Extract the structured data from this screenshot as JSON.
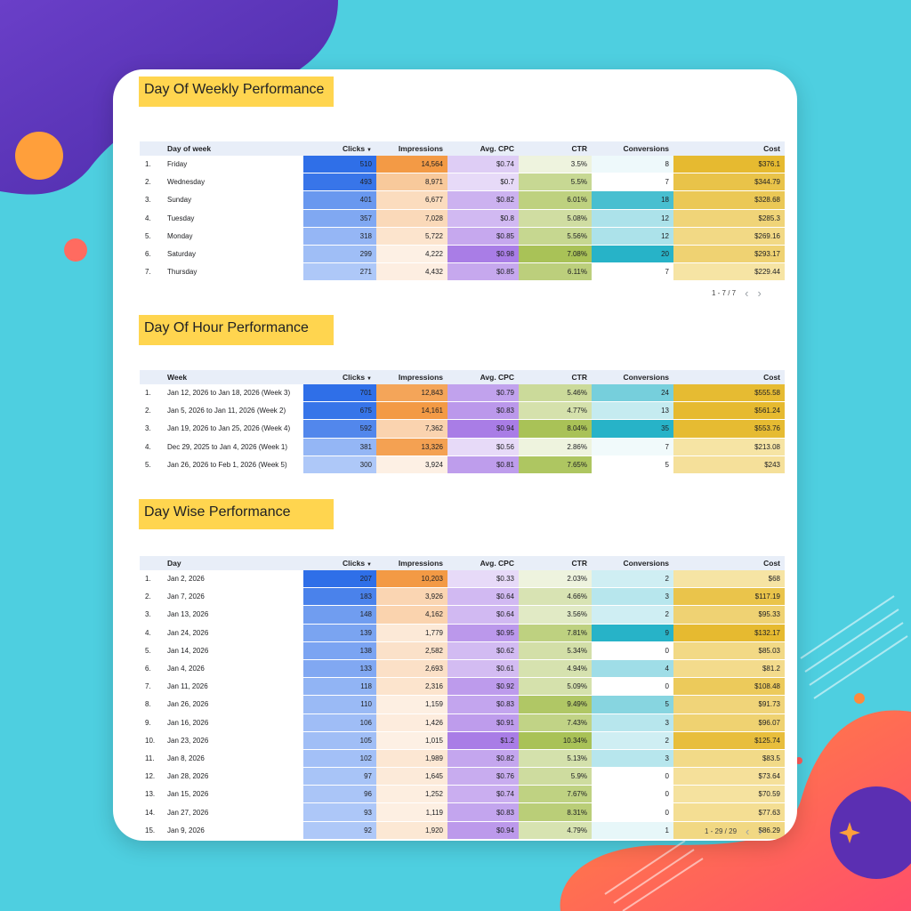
{
  "colors": {
    "background": "#4ecfe0",
    "card": "#ffffff",
    "title_highlight": "#ffd54f",
    "header_row": "#e8eef8",
    "clicks_scale": [
      "#aec8f8",
      "#2f6fe8"
    ],
    "impressions_scale": [
      "#fdf0e4",
      "#f39a45"
    ],
    "cpc_scale": [
      "#e7daf8",
      "#a97de6"
    ],
    "ctr_scale": [
      "#eef3de",
      "#a9c257"
    ],
    "conversions_scale": [
      "#ffffff",
      "#27b3c8"
    ],
    "cost_scale": [
      "#f6e4a4",
      "#e6ba30"
    ]
  },
  "sections": [
    {
      "title": "Day Of Weekly Performance",
      "headers": [
        "",
        "Day of week",
        "Clicks",
        "Impressions",
        "Avg. CPC",
        "CTR",
        "Conversions",
        "Cost"
      ],
      "sort_icon": "sort-desc-icon",
      "rows": [
        {
          "idx": "1.",
          "label": "Friday",
          "clicks": "510",
          "impressions": "14,564",
          "cpc": "$0.74",
          "ctr": "3.5%",
          "conversions": "8",
          "cost": "$376.1"
        },
        {
          "idx": "2.",
          "label": "Wednesday",
          "clicks": "493",
          "impressions": "8,971",
          "cpc": "$0.7",
          "ctr": "5.5%",
          "conversions": "7",
          "cost": "$344.79"
        },
        {
          "idx": "3.",
          "label": "Sunday",
          "clicks": "401",
          "impressions": "6,677",
          "cpc": "$0.82",
          "ctr": "6.01%",
          "conversions": "18",
          "cost": "$328.68"
        },
        {
          "idx": "4.",
          "label": "Tuesday",
          "clicks": "357",
          "impressions": "7,028",
          "cpc": "$0.8",
          "ctr": "5.08%",
          "conversions": "12",
          "cost": "$285.3"
        },
        {
          "idx": "5.",
          "label": "Monday",
          "clicks": "318",
          "impressions": "5,722",
          "cpc": "$0.85",
          "ctr": "5.56%",
          "conversions": "12",
          "cost": "$269.16"
        },
        {
          "idx": "6.",
          "label": "Saturday",
          "clicks": "299",
          "impressions": "4,222",
          "cpc": "$0.98",
          "ctr": "7.08%",
          "conversions": "20",
          "cost": "$293.17"
        },
        {
          "idx": "7.",
          "label": "Thursday",
          "clicks": "271",
          "impressions": "4,432",
          "cpc": "$0.85",
          "ctr": "6.11%",
          "conversions": "7",
          "cost": "$229.44"
        }
      ],
      "pager": "1 - 7 / 7"
    },
    {
      "title": "Day Of Hour Performance",
      "headers": [
        "",
        "Week",
        "Clicks",
        "Impressions",
        "Avg. CPC",
        "CTR",
        "Conversions",
        "Cost"
      ],
      "sort_icon": "sort-desc-icon",
      "rows": [
        {
          "idx": "1.",
          "label": "Jan 12, 2026 to Jan 18, 2026 (Week 3)",
          "clicks": "701",
          "impressions": "12,843",
          "cpc": "$0.79",
          "ctr": "5.46%",
          "conversions": "24",
          "cost": "$555.58"
        },
        {
          "idx": "2.",
          "label": "Jan 5, 2026 to Jan 11, 2026 (Week 2)",
          "clicks": "675",
          "impressions": "14,161",
          "cpc": "$0.83",
          "ctr": "4.77%",
          "conversions": "13",
          "cost": "$561.24"
        },
        {
          "idx": "3.",
          "label": "Jan 19, 2026 to Jan 25, 2026 (Week 4)",
          "clicks": "592",
          "impressions": "7,362",
          "cpc": "$0.94",
          "ctr": "8.04%",
          "conversions": "35",
          "cost": "$553.76"
        },
        {
          "idx": "4.",
          "label": "Dec 29, 2025 to Jan 4, 2026 (Week 1)",
          "clicks": "381",
          "impressions": "13,326",
          "cpc": "$0.56",
          "ctr": "2.86%",
          "conversions": "7",
          "cost": "$213.08"
        },
        {
          "idx": "5.",
          "label": "Jan 26, 2026 to Feb 1, 2026 (Week 5)",
          "clicks": "300",
          "impressions": "3,924",
          "cpc": "$0.81",
          "ctr": "7.65%",
          "conversions": "5",
          "cost": "$243"
        }
      ]
    },
    {
      "title": "Day Wise Performance",
      "headers": [
        "",
        "Day",
        "Clicks",
        "Impressions",
        "Avg. CPC",
        "CTR",
        "Conversions",
        "Cost"
      ],
      "sort_icon": "sort-desc-icon",
      "rows": [
        {
          "idx": "1.",
          "label": "Jan 2, 2026",
          "clicks": "207",
          "impressions": "10,203",
          "cpc": "$0.33",
          "ctr": "2.03%",
          "conversions": "2",
          "cost": "$68"
        },
        {
          "idx": "2.",
          "label": "Jan 7, 2026",
          "clicks": "183",
          "impressions": "3,926",
          "cpc": "$0.64",
          "ctr": "4.66%",
          "conversions": "3",
          "cost": "$117.19"
        },
        {
          "idx": "3.",
          "label": "Jan 13, 2026",
          "clicks": "148",
          "impressions": "4,162",
          "cpc": "$0.64",
          "ctr": "3.56%",
          "conversions": "2",
          "cost": "$95.33"
        },
        {
          "idx": "4.",
          "label": "Jan 24, 2026",
          "clicks": "139",
          "impressions": "1,779",
          "cpc": "$0.95",
          "ctr": "7.81%",
          "conversions": "9",
          "cost": "$132.17"
        },
        {
          "idx": "5.",
          "label": "Jan 14, 2026",
          "clicks": "138",
          "impressions": "2,582",
          "cpc": "$0.62",
          "ctr": "5.34%",
          "conversions": "0",
          "cost": "$85.03"
        },
        {
          "idx": "6.",
          "label": "Jan 4, 2026",
          "clicks": "133",
          "impressions": "2,693",
          "cpc": "$0.61",
          "ctr": "4.94%",
          "conversions": "4",
          "cost": "$81.2"
        },
        {
          "idx": "7.",
          "label": "Jan 11, 2026",
          "clicks": "118",
          "impressions": "2,316",
          "cpc": "$0.92",
          "ctr": "5.09%",
          "conversions": "0",
          "cost": "$108.48"
        },
        {
          "idx": "8.",
          "label": "Jan 26, 2026",
          "clicks": "110",
          "impressions": "1,159",
          "cpc": "$0.83",
          "ctr": "9.49%",
          "conversions": "5",
          "cost": "$91.73"
        },
        {
          "idx": "9.",
          "label": "Jan 16, 2026",
          "clicks": "106",
          "impressions": "1,426",
          "cpc": "$0.91",
          "ctr": "7.43%",
          "conversions": "3",
          "cost": "$96.07"
        },
        {
          "idx": "10.",
          "label": "Jan 23, 2026",
          "clicks": "105",
          "impressions": "1,015",
          "cpc": "$1.2",
          "ctr": "10.34%",
          "conversions": "2",
          "cost": "$125.74"
        },
        {
          "idx": "11.",
          "label": "Jan 8, 2026",
          "clicks": "102",
          "impressions": "1,989",
          "cpc": "$0.82",
          "ctr": "5.13%",
          "conversions": "3",
          "cost": "$83.5"
        },
        {
          "idx": "12.",
          "label": "Jan 28, 2026",
          "clicks": "97",
          "impressions": "1,645",
          "cpc": "$0.76",
          "ctr": "5.9%",
          "conversions": "0",
          "cost": "$73.64"
        },
        {
          "idx": "13.",
          "label": "Jan 15, 2026",
          "clicks": "96",
          "impressions": "1,252",
          "cpc": "$0.74",
          "ctr": "7.67%",
          "conversions": "0",
          "cost": "$70.59"
        },
        {
          "idx": "14.",
          "label": "Jan 27, 2026",
          "clicks": "93",
          "impressions": "1,119",
          "cpc": "$0.83",
          "ctr": "8.31%",
          "conversions": "0",
          "cost": "$77.63"
        },
        {
          "idx": "15.",
          "label": "Jan 9, 2026",
          "clicks": "92",
          "impressions": "1,920",
          "cpc": "$0.94",
          "ctr": "4.79%",
          "conversions": "1",
          "cost": "$86.29"
        }
      ],
      "pager": "1 - 29 / 29"
    }
  ],
  "pager_icons": [
    "chevron-left-icon",
    "chevron-right-icon"
  ]
}
